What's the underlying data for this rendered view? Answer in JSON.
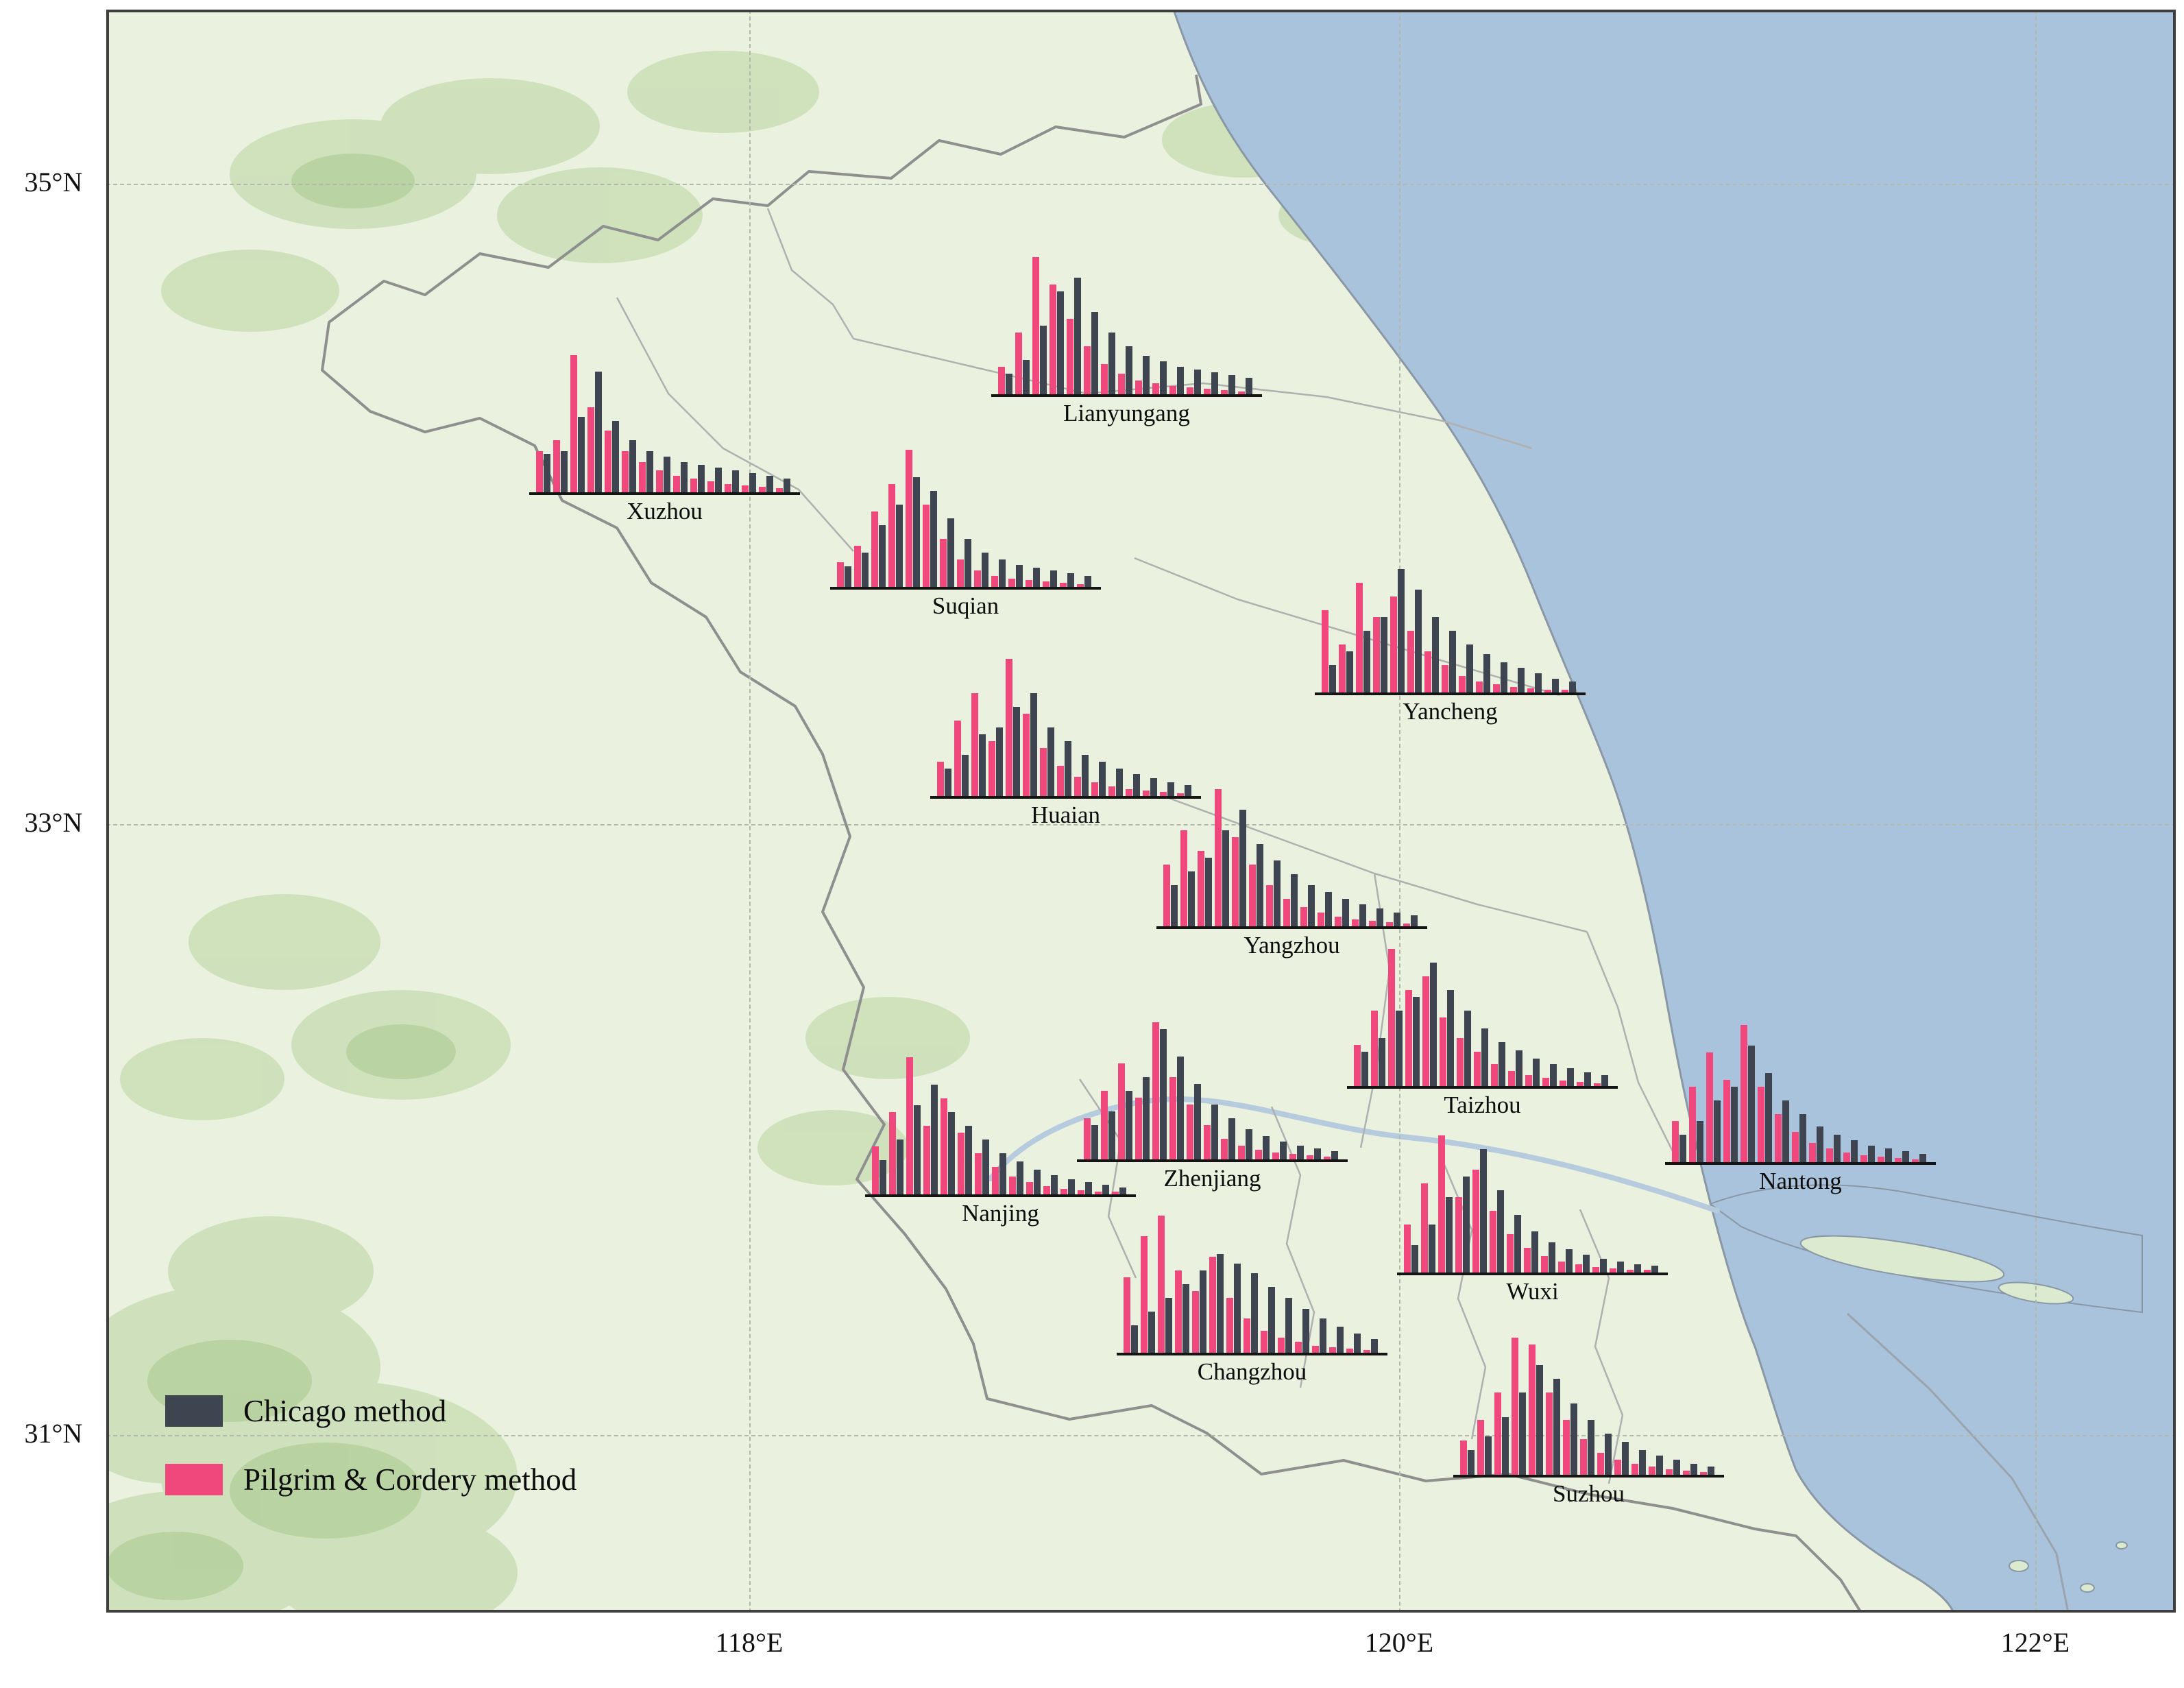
{
  "legend": {
    "chicago": "Chicago method",
    "pilgrim": "Pilgrim & Cordery method"
  },
  "colors": {
    "chicago": "#3e4450",
    "pilgrim": "#f0487c",
    "sea": "#a9c3dc",
    "land": "#eaf2df",
    "boundary": "#8f8f8f"
  },
  "axis": {
    "lat": [
      {
        "label": "35°N",
        "y": 254
      },
      {
        "label": "33°N",
        "y": 1188
      },
      {
        "label": "31°N",
        "y": 2079
      }
    ],
    "lon": [
      {
        "label": "118°E",
        "x": 938
      },
      {
        "label": "120°E",
        "x": 1886
      },
      {
        "label": "122°E",
        "x": 2814
      }
    ]
  },
  "chart_data": [
    {
      "type": "bar",
      "city": "Xuzhou",
      "pos": {
        "x": 627,
        "y": 704
      },
      "series": [
        {
          "key": "pilgrim",
          "name": "Pilgrim & Cordery method",
          "values": [
            60,
            76,
            200,
            124,
            90,
            60,
            44,
            32,
            24,
            20,
            16,
            12,
            10,
            8,
            6
          ]
        },
        {
          "key": "chicago",
          "name": "Chicago method",
          "values": [
            56,
            60,
            110,
            176,
            104,
            76,
            60,
            52,
            44,
            40,
            36,
            32,
            28,
            24,
            20
          ]
        }
      ]
    },
    {
      "type": "bar",
      "city": "Lianyungang",
      "pos": {
        "x": 1301,
        "y": 561
      },
      "series": [
        {
          "key": "pilgrim",
          "name": "Pilgrim & Cordery method",
          "values": [
            40,
            90,
            200,
            160,
            110,
            70,
            44,
            30,
            20,
            16,
            12,
            10,
            8,
            6,
            4
          ]
        },
        {
          "key": "chicago",
          "name": "Chicago method",
          "values": [
            30,
            50,
            100,
            150,
            170,
            120,
            90,
            70,
            56,
            48,
            40,
            36,
            32,
            28,
            24
          ]
        }
      ]
    },
    {
      "type": "bar",
      "city": "Suqian",
      "pos": {
        "x": 1066,
        "y": 842
      },
      "series": [
        {
          "key": "pilgrim",
          "name": "Pilgrim & Cordery method",
          "values": [
            36,
            60,
            110,
            150,
            200,
            120,
            70,
            40,
            24,
            16,
            12,
            10,
            8,
            6,
            4
          ]
        },
        {
          "key": "chicago",
          "name": "Chicago method",
          "values": [
            30,
            50,
            90,
            120,
            160,
            140,
            100,
            70,
            50,
            40,
            32,
            28,
            24,
            20,
            16
          ]
        }
      ]
    },
    {
      "type": "bar",
      "city": "Yancheng",
      "pos": {
        "x": 1773,
        "y": 996
      },
      "series": [
        {
          "key": "pilgrim",
          "name": "Pilgrim & Cordery method",
          "values": [
            120,
            70,
            160,
            110,
            140,
            90,
            60,
            40,
            24,
            16,
            12,
            8,
            6,
            4,
            4
          ]
        },
        {
          "key": "chicago",
          "name": "Chicago method",
          "values": [
            40,
            60,
            90,
            110,
            180,
            150,
            110,
            90,
            70,
            56,
            44,
            36,
            28,
            20,
            16
          ]
        }
      ]
    },
    {
      "type": "bar",
      "city": "Huaian",
      "pos": {
        "x": 1212,
        "y": 1147
      },
      "series": [
        {
          "key": "pilgrim",
          "name": "Pilgrim & Cordery method",
          "values": [
            50,
            110,
            150,
            80,
            200,
            120,
            70,
            44,
            28,
            20,
            14,
            10,
            8,
            6,
            4
          ]
        },
        {
          "key": "chicago",
          "name": "Chicago method",
          "values": [
            40,
            60,
            90,
            100,
            130,
            150,
            100,
            80,
            60,
            50,
            40,
            32,
            26,
            20,
            16
          ]
        }
      ]
    },
    {
      "type": "bar",
      "city": "Yangzhou",
      "pos": {
        "x": 1542,
        "y": 1337
      },
      "series": [
        {
          "key": "pilgrim",
          "name": "Pilgrim & Cordery method",
          "values": [
            90,
            140,
            110,
            200,
            130,
            90,
            60,
            40,
            28,
            20,
            14,
            10,
            8,
            6,
            4
          ]
        },
        {
          "key": "chicago",
          "name": "Chicago method",
          "values": [
            60,
            80,
            100,
            140,
            170,
            120,
            96,
            76,
            60,
            50,
            40,
            32,
            26,
            20,
            16
          ]
        }
      ]
    },
    {
      "type": "bar",
      "city": "Taizhou",
      "pos": {
        "x": 1820,
        "y": 1570
      },
      "series": [
        {
          "key": "pilgrim",
          "name": "Pilgrim & Cordery method",
          "values": [
            60,
            110,
            200,
            140,
            160,
            100,
            70,
            50,
            32,
            22,
            16,
            12,
            8,
            6,
            4
          ]
        },
        {
          "key": "chicago",
          "name": "Chicago method",
          "values": [
            50,
            70,
            110,
            130,
            180,
            140,
            110,
            84,
            64,
            52,
            40,
            32,
            26,
            20,
            16
          ]
        }
      ]
    },
    {
      "type": "bar",
      "city": "Nanjing",
      "pos": {
        "x": 1117,
        "y": 1728
      },
      "series": [
        {
          "key": "pilgrim",
          "name": "Pilgrim & Cordery method",
          "values": [
            70,
            120,
            200,
            100,
            140,
            90,
            60,
            40,
            26,
            18,
            12,
            8,
            6,
            4,
            4
          ]
        },
        {
          "key": "chicago",
          "name": "Chicago method",
          "values": [
            50,
            80,
            130,
            160,
            120,
            100,
            80,
            60,
            48,
            36,
            28,
            22,
            18,
            14,
            10
          ]
        }
      ]
    },
    {
      "type": "bar",
      "city": "Zhenjiang",
      "pos": {
        "x": 1426,
        "y": 1677
      },
      "series": [
        {
          "key": "pilgrim",
          "name": "Pilgrim & Cordery method",
          "values": [
            60,
            100,
            140,
            90,
            200,
            120,
            80,
            50,
            30,
            20,
            14,
            10,
            8,
            6,
            4
          ]
        },
        {
          "key": "chicago",
          "name": "Chicago method",
          "values": [
            50,
            70,
            100,
            120,
            190,
            150,
            110,
            80,
            60,
            44,
            34,
            26,
            20,
            16,
            12
          ]
        }
      ]
    },
    {
      "type": "bar",
      "city": "Nantong",
      "pos": {
        "x": 2284,
        "y": 1681
      },
      "series": [
        {
          "key": "pilgrim",
          "name": "Pilgrim & Cordery method",
          "values": [
            60,
            110,
            160,
            120,
            200,
            110,
            70,
            44,
            28,
            20,
            14,
            10,
            8,
            6,
            4
          ]
        },
        {
          "key": "chicago",
          "name": "Chicago method",
          "values": [
            40,
            60,
            90,
            110,
            170,
            130,
            90,
            70,
            52,
            40,
            32,
            24,
            20,
            16,
            12
          ]
        }
      ]
    },
    {
      "type": "bar",
      "city": "Wuxi",
      "pos": {
        "x": 1893,
        "y": 1842
      },
      "series": [
        {
          "key": "pilgrim",
          "name": "Pilgrim & Cordery method",
          "values": [
            70,
            130,
            200,
            110,
            150,
            90,
            56,
            36,
            24,
            16,
            12,
            8,
            6,
            4,
            4
          ]
        },
        {
          "key": "chicago",
          "name": "Chicago method",
          "values": [
            40,
            70,
            110,
            140,
            180,
            120,
            84,
            60,
            44,
            34,
            26,
            20,
            16,
            12,
            10
          ]
        }
      ]
    },
    {
      "type": "bar",
      "city": "Changzhou",
      "pos": {
        "x": 1484,
        "y": 1959
      },
      "series": [
        {
          "key": "pilgrim",
          "name": "Pilgrim & Cordery method",
          "values": [
            110,
            170,
            200,
            120,
            90,
            140,
            80,
            50,
            32,
            22,
            16,
            10,
            8,
            6,
            4
          ]
        },
        {
          "key": "chicago",
          "name": "Chicago method",
          "values": [
            40,
            60,
            80,
            100,
            120,
            144,
            130,
            116,
            96,
            80,
            64,
            50,
            38,
            28,
            20
          ]
        }
      ]
    },
    {
      "type": "bar",
      "city": "Suzhou",
      "pos": {
        "x": 1975,
        "y": 2137
      },
      "series": [
        {
          "key": "pilgrim",
          "name": "Pilgrim & Cordery method",
          "values": [
            50,
            80,
            120,
            200,
            190,
            120,
            80,
            52,
            32,
            22,
            16,
            12,
            8,
            6,
            4
          ]
        },
        {
          "key": "chicago",
          "name": "Chicago method",
          "values": [
            36,
            56,
            84,
            120,
            160,
            140,
            104,
            80,
            60,
            48,
            36,
            28,
            22,
            16,
            12
          ]
        }
      ]
    }
  ]
}
